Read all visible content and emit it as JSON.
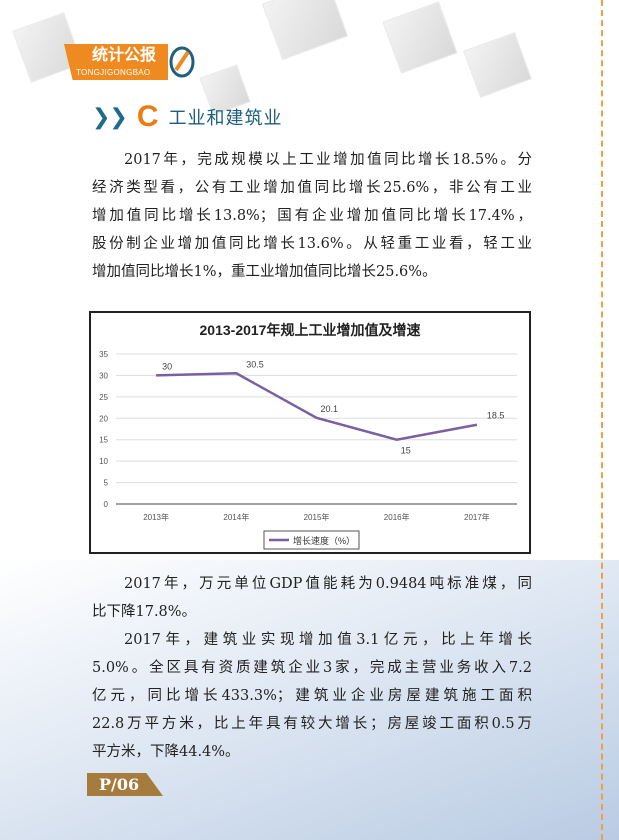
{
  "header": {
    "logo_cn": "统计公报",
    "logo_en": "TONGJIGONGBAO"
  },
  "section": {
    "letter": "C",
    "title": "工业和建筑业"
  },
  "paragraph1": [
    "2017年，完成规模以上工业增加值同比增长18.5%。分",
    "经济类型看，公有工业增加值同比增长25.6%，非公有工业",
    "增加值同比增长13.8%；国有企业增加值同比增长17.4%，",
    "股份制企业增加值同比增长13.6%。从轻重工业看，轻工业",
    "增加值同比增长1%，重工业增加值同比增长25.6%。"
  ],
  "paragraph2": [
    "2017年，万元单位GDP值能耗为0.9484吨标准煤，同",
    "比下降17.8%。"
  ],
  "paragraph3": [
    "2017年，建筑业实现增加值3.1亿元，比上年增长",
    "5.0%。全区具有资质建筑企业3家，完成主营业务收入7.2",
    "亿元，同比增长433.3%；建筑业企业房屋建筑施工面积",
    "22.8万平方米，比上年具有较大增长；房屋竣工面积0.5万",
    "平方米，下降44.4%。"
  ],
  "page_number": "P/06",
  "colors": {
    "accent_orange": "#ee8a1f",
    "section_blue": "#1e5f80",
    "line": "#7b5fa0",
    "badge": "#a57c3d"
  },
  "chart_data": {
    "type": "line",
    "title": "2013-2017年规上工业增加值及增速",
    "categories": [
      "2013年",
      "2014年",
      "2015年",
      "2016年",
      "2017年"
    ],
    "series": [
      {
        "name": "增长速度（%）",
        "values": [
          30,
          30.5,
          20.1,
          15,
          18.5
        ]
      }
    ],
    "data_labels": [
      "30",
      "30.5",
      "20.1",
      "15",
      "18.5"
    ],
    "ylim": [
      0,
      35
    ],
    "yticks": [
      "0",
      "5",
      "10",
      "15",
      "20",
      "25",
      "30",
      "35"
    ],
    "grid": true,
    "legend": "bottom"
  }
}
